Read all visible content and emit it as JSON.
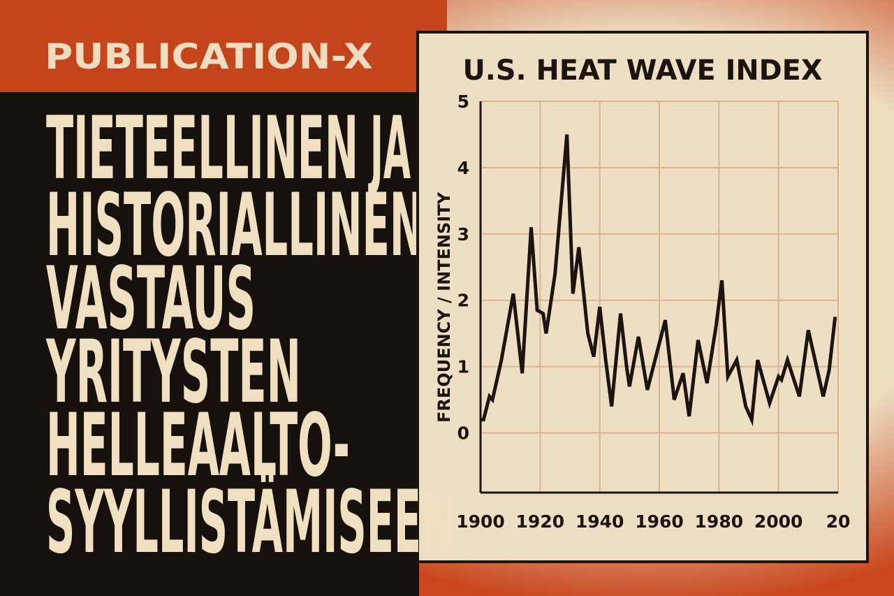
{
  "publication": "PUBLICATION-X",
  "headline": {
    "lines": [
      "TIETEELLINEN",
      "HISTORIALLINEN",
      "VASTAUS",
      "YRITYSTEN",
      "HELLEAALTO-",
      "SYYLLISTÄMISEEN"
    ],
    "small_word": "JA"
  },
  "chart_data": {
    "type": "line",
    "title": "U.S. HEAT WAVE INDEX",
    "y_label": "FREQUENCY / INTENSITY",
    "x": [
      1900,
      1901,
      1903,
      1904,
      1907,
      1911,
      1914,
      1917,
      1919,
      1921,
      1922,
      1925,
      1929,
      1931,
      1933,
      1936,
      1938,
      1940,
      1942,
      1944,
      1947,
      1949,
      1950,
      1953,
      1956,
      1962,
      1965,
      1968,
      1970,
      1973,
      1976,
      1979,
      1981,
      1983,
      1986,
      1989,
      1991,
      1993,
      1997,
      2000,
      2001,
      2003,
      2007,
      2010,
      2014,
      2015,
      2017,
      2019
    ],
    "values": [
      0.2,
      0.2,
      0.55,
      0.5,
      1.1,
      2.1,
      0.9,
      3.1,
      1.85,
      1.8,
      1.5,
      2.4,
      4.5,
      2.1,
      2.8,
      1.5,
      1.15,
      1.9,
      1.1,
      0.4,
      1.8,
      1.0,
      0.7,
      1.45,
      0.65,
      1.7,
      0.5,
      0.9,
      0.25,
      1.4,
      0.75,
      1.6,
      2.3,
      0.85,
      1.1,
      0.4,
      0.2,
      1.1,
      0.45,
      0.85,
      0.8,
      1.1,
      0.55,
      1.55,
      0.75,
      0.55,
      0.95,
      1.75
    ],
    "color": "#1b1410",
    "xlim": [
      1900,
      2020
    ],
    "xticks": [
      1900,
      1920,
      1940,
      1960,
      1980,
      2000,
      {
        "value": 2020,
        "label": "20"
      }
    ],
    "ylim": [
      -0.9,
      5
    ],
    "yticks": [
      0,
      1,
      2,
      3,
      4,
      5
    ],
    "grid": true
  }
}
